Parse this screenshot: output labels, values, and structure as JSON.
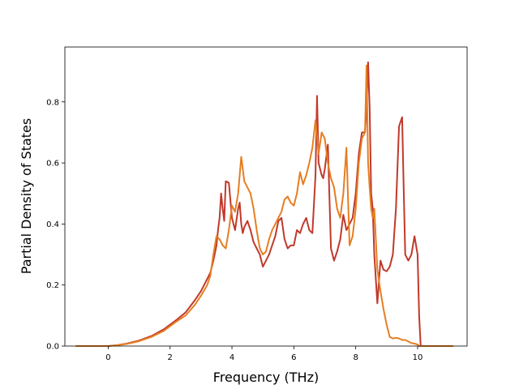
{
  "chart_data": {
    "type": "line",
    "title": "",
    "xlabel": "Frequency (THz)",
    "ylabel": "Partial Density of States",
    "xlim": [
      -1.4,
      11.6
    ],
    "ylim": [
      0.0,
      0.98
    ],
    "xticks": [
      0,
      2,
      4,
      6,
      8,
      10
    ],
    "yticks": [
      0.0,
      0.2,
      0.4,
      0.6,
      0.8
    ],
    "xtick_labels": [
      "0",
      "2",
      "4",
      "6",
      "8",
      "10"
    ],
    "ytick_labels": [
      "0.0",
      "0.2",
      "0.4",
      "0.6",
      "0.8"
    ],
    "grid": false,
    "legend": "none",
    "series": [
      {
        "color": "#c0392b",
        "x": [
          -1.05,
          0.0,
          0.3,
          0.6,
          1.0,
          1.4,
          1.8,
          2.2,
          2.5,
          2.8,
          3.0,
          3.2,
          3.3,
          3.4,
          3.5,
          3.55,
          3.6,
          3.65,
          3.7,
          3.75,
          3.8,
          3.9,
          4.0,
          4.1,
          4.2,
          4.25,
          4.3,
          4.35,
          4.4,
          4.5,
          4.6,
          4.7,
          4.8,
          4.9,
          5.0,
          5.1,
          5.2,
          5.3,
          5.4,
          5.5,
          5.6,
          5.7,
          5.8,
          5.9,
          6.0,
          6.1,
          6.2,
          6.3,
          6.4,
          6.5,
          6.6,
          6.7,
          6.75,
          6.8,
          6.85,
          6.9,
          6.95,
          7.0,
          7.1,
          7.2,
          7.3,
          7.4,
          7.5,
          7.6,
          7.7,
          7.8,
          7.9,
          8.0,
          8.1,
          8.2,
          8.3,
          8.35,
          8.4,
          8.45,
          8.5,
          8.55,
          8.6,
          8.7,
          8.8,
          8.9,
          9.0,
          9.1,
          9.2,
          9.3,
          9.4,
          9.5,
          9.55,
          9.6,
          9.7,
          9.8,
          9.9,
          10.0,
          10.05,
          10.1,
          10.15,
          10.2,
          11.15
        ],
        "y": [
          0.0,
          0.0,
          0.003,
          0.008,
          0.018,
          0.033,
          0.055,
          0.085,
          0.11,
          0.15,
          0.18,
          0.22,
          0.24,
          0.28,
          0.33,
          0.38,
          0.42,
          0.5,
          0.45,
          0.41,
          0.54,
          0.535,
          0.42,
          0.38,
          0.45,
          0.47,
          0.4,
          0.37,
          0.39,
          0.41,
          0.38,
          0.34,
          0.32,
          0.3,
          0.26,
          0.28,
          0.3,
          0.33,
          0.36,
          0.41,
          0.42,
          0.35,
          0.32,
          0.33,
          0.33,
          0.38,
          0.37,
          0.4,
          0.42,
          0.38,
          0.37,
          0.56,
          0.82,
          0.6,
          0.58,
          0.56,
          0.55,
          0.58,
          0.66,
          0.32,
          0.28,
          0.31,
          0.35,
          0.43,
          0.38,
          0.4,
          0.42,
          0.5,
          0.63,
          0.7,
          0.7,
          0.78,
          0.93,
          0.78,
          0.5,
          0.45,
          0.3,
          0.14,
          0.28,
          0.25,
          0.245,
          0.26,
          0.3,
          0.45,
          0.72,
          0.75,
          0.52,
          0.3,
          0.28,
          0.3,
          0.36,
          0.3,
          0.1,
          0.0,
          0.0,
          0.0,
          0.0
        ]
      },
      {
        "color": "#e67e22",
        "x": [
          -1.05,
          0.0,
          0.3,
          0.6,
          1.0,
          1.4,
          1.8,
          2.2,
          2.5,
          2.8,
          3.0,
          3.2,
          3.3,
          3.4,
          3.5,
          3.6,
          3.7,
          3.8,
          3.9,
          4.0,
          4.1,
          4.2,
          4.3,
          4.35,
          4.4,
          4.5,
          4.6,
          4.7,
          4.8,
          4.9,
          5.0,
          5.1,
          5.2,
          5.3,
          5.4,
          5.5,
          5.6,
          5.7,
          5.8,
          5.9,
          6.0,
          6.1,
          6.2,
          6.3,
          6.4,
          6.5,
          6.6,
          6.7,
          6.8,
          6.9,
          7.0,
          7.1,
          7.2,
          7.3,
          7.4,
          7.5,
          7.6,
          7.7,
          7.8,
          7.9,
          8.0,
          8.1,
          8.2,
          8.3,
          8.35,
          8.4,
          8.45,
          8.5,
          8.55,
          8.6,
          8.7,
          8.8,
          8.9,
          9.0,
          9.1,
          9.2,
          9.3,
          9.4,
          9.5,
          9.6,
          9.7,
          9.8,
          9.9,
          10.0,
          10.05,
          10.1,
          11.15
        ],
        "y": [
          0.0,
          0.0,
          0.003,
          0.007,
          0.016,
          0.03,
          0.05,
          0.08,
          0.1,
          0.135,
          0.165,
          0.2,
          0.23,
          0.3,
          0.36,
          0.35,
          0.33,
          0.32,
          0.38,
          0.46,
          0.44,
          0.5,
          0.62,
          0.58,
          0.54,
          0.52,
          0.5,
          0.45,
          0.38,
          0.32,
          0.3,
          0.31,
          0.35,
          0.38,
          0.4,
          0.42,
          0.44,
          0.48,
          0.49,
          0.47,
          0.46,
          0.5,
          0.57,
          0.53,
          0.56,
          0.6,
          0.65,
          0.74,
          0.63,
          0.7,
          0.68,
          0.6,
          0.55,
          0.52,
          0.45,
          0.42,
          0.5,
          0.65,
          0.33,
          0.36,
          0.45,
          0.6,
          0.68,
          0.7,
          0.92,
          0.6,
          0.52,
          0.45,
          0.42,
          0.45,
          0.25,
          0.18,
          0.12,
          0.07,
          0.03,
          0.025,
          0.027,
          0.025,
          0.02,
          0.02,
          0.015,
          0.01,
          0.008,
          0.005,
          0.0,
          0.0,
          0.0
        ]
      }
    ]
  }
}
